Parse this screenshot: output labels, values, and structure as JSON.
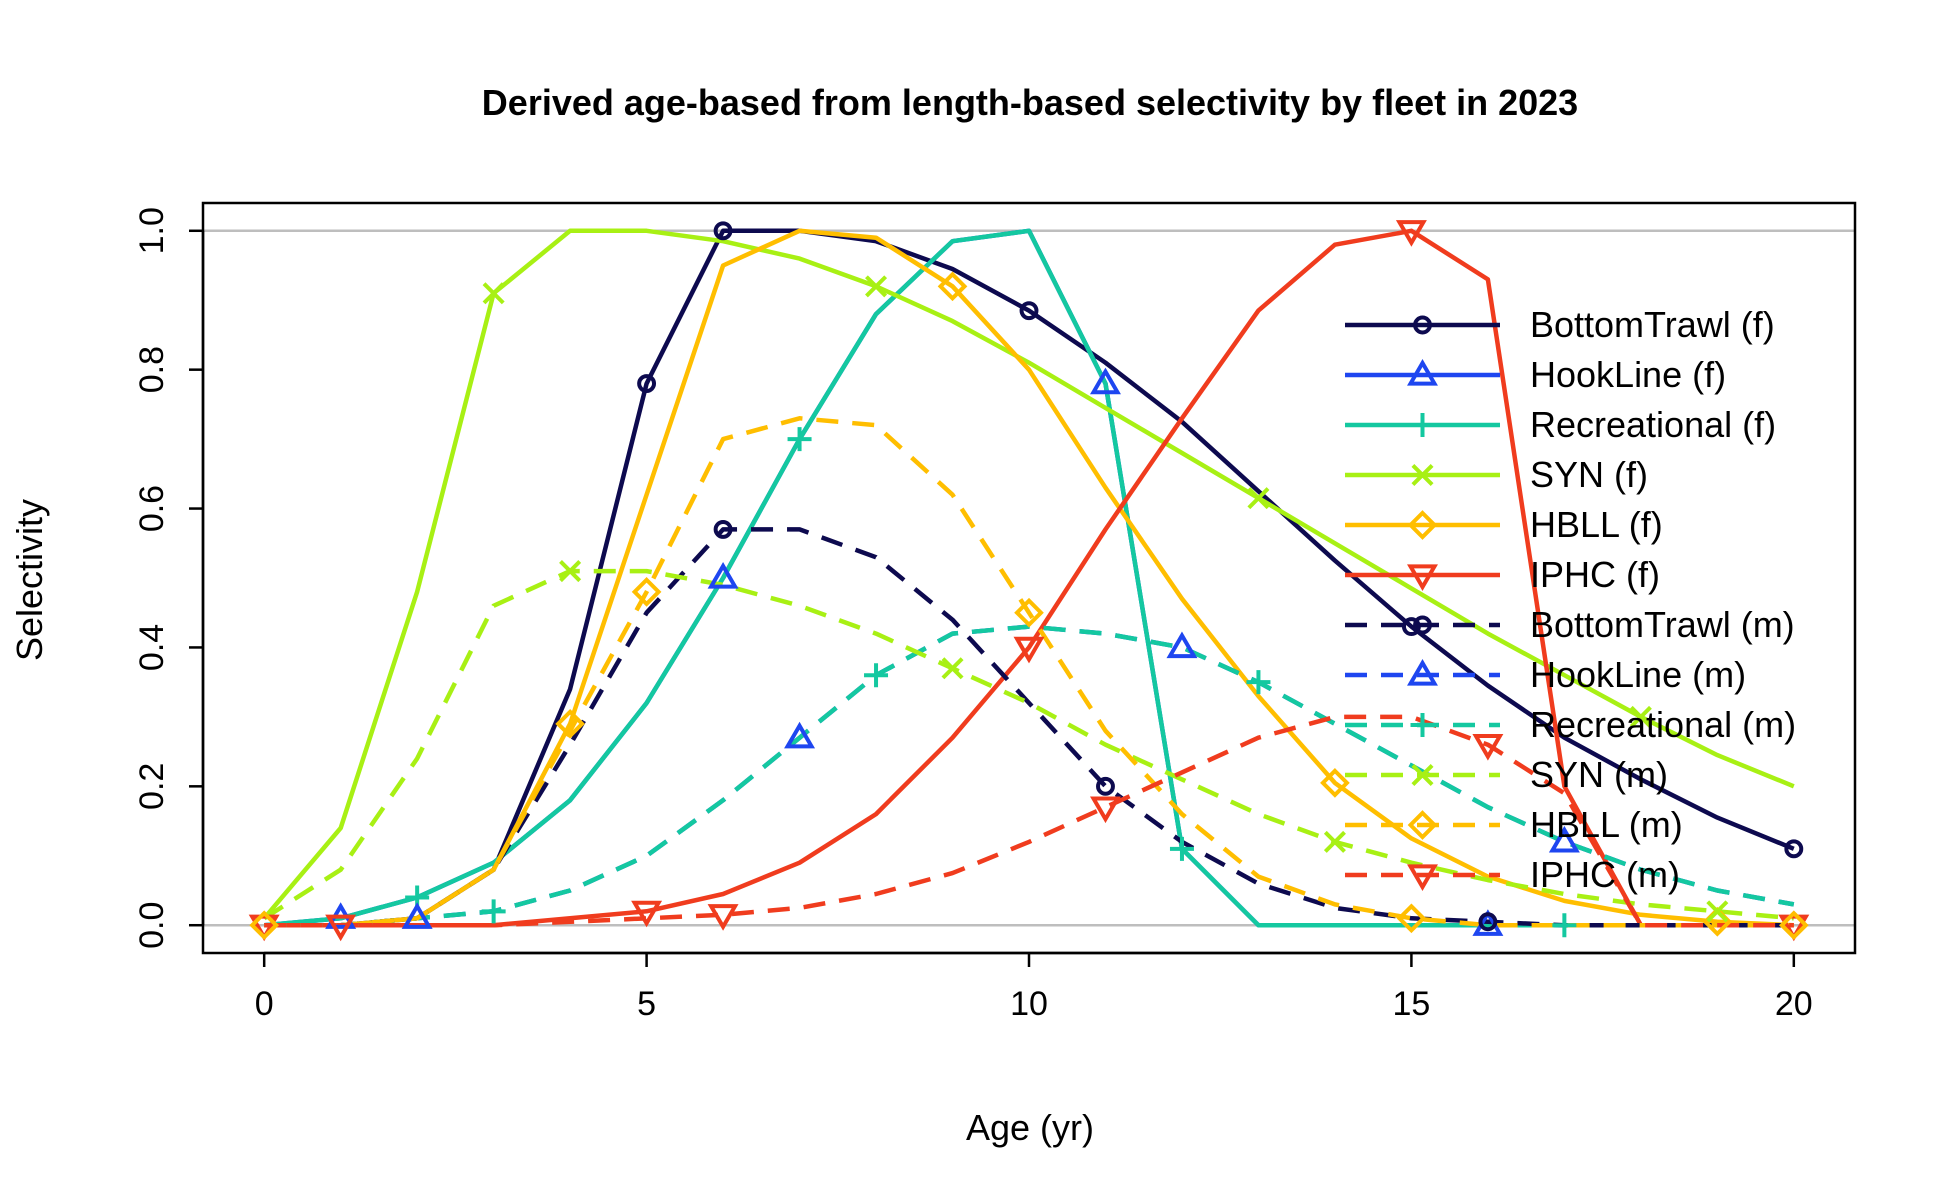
{
  "chart_data": {
    "type": "line",
    "title": "Derived age-based from length-based selectivity by fleet in 2023",
    "xlabel": "Age (yr)",
    "ylabel": "Selectivity",
    "xlim": [
      -0.8,
      20.8
    ],
    "ylim": [
      -0.04,
      1.04
    ],
    "x_ticks": [
      0,
      5,
      10,
      15,
      20
    ],
    "y_ticks": [
      0.0,
      0.2,
      0.4,
      0.6,
      0.8,
      1.0
    ],
    "x_tick_labels": [
      "0",
      "5",
      "10",
      "15",
      "20"
    ],
    "y_tick_labels": [
      "0.0",
      "0.2",
      "0.4",
      "0.6",
      "0.8",
      "1.0"
    ],
    "reference_lines": [
      0,
      1
    ],
    "reference_line_color": "#bebebe",
    "grid": false,
    "legend_position": "right",
    "x": [
      0,
      1,
      2,
      3,
      4,
      5,
      6,
      7,
      8,
      9,
      10,
      11,
      12,
      13,
      14,
      15,
      16,
      17,
      18,
      19,
      20
    ],
    "series": [
      {
        "name": "BottomTrawl (f)",
        "color": "#0d0a4f",
        "dash": false,
        "marker": "circle",
        "values": [
          0.0,
          0.0,
          0.01,
          0.08,
          0.34,
          0.78,
          1.0,
          1.0,
          0.985,
          0.945,
          0.885,
          0.81,
          0.725,
          0.625,
          0.525,
          0.43,
          0.345,
          0.27,
          0.21,
          0.155,
          0.11
        ]
      },
      {
        "name": "HookLine (f)",
        "color": "#1e46f0",
        "dash": false,
        "marker": "triangle",
        "values": [
          0.0,
          0.01,
          0.04,
          0.09,
          0.18,
          0.32,
          0.5,
          0.7,
          0.88,
          0.985,
          1.0,
          0.78,
          0.11,
          0.0,
          0.0,
          0.0,
          0.0,
          0.0,
          0.0,
          0.0,
          0.0
        ]
      },
      {
        "name": "Recreational (f)",
        "color": "#14c8a0",
        "dash": false,
        "marker": "plus",
        "values": [
          0.0,
          0.01,
          0.04,
          0.09,
          0.18,
          0.32,
          0.5,
          0.7,
          0.88,
          0.985,
          1.0,
          0.78,
          0.11,
          0.0,
          0.0,
          0.0,
          0.0,
          0.0,
          0.0,
          0.0,
          0.0
        ]
      },
      {
        "name": "SYN (f)",
        "color": "#a8f014",
        "dash": false,
        "marker": "x",
        "values": [
          0.01,
          0.14,
          0.48,
          0.91,
          1.0,
          1.0,
          0.985,
          0.96,
          0.92,
          0.87,
          0.81,
          0.745,
          0.68,
          0.615,
          0.55,
          0.485,
          0.42,
          0.36,
          0.3,
          0.245,
          0.2
        ]
      },
      {
        "name": "HBLL (f)",
        "color": "#ffbe00",
        "dash": false,
        "marker": "diamond",
        "values": [
          0.0,
          0.0,
          0.01,
          0.08,
          0.29,
          0.62,
          0.95,
          1.0,
          0.99,
          0.92,
          0.8,
          0.63,
          0.47,
          0.33,
          0.205,
          0.125,
          0.07,
          0.035,
          0.015,
          0.005,
          0.0
        ]
      },
      {
        "name": "IPHC (f)",
        "color": "#f03c1e",
        "dash": false,
        "marker": "triangle-down",
        "values": [
          0.0,
          0.0,
          0.0,
          0.0,
          0.01,
          0.02,
          0.045,
          0.09,
          0.16,
          0.27,
          0.4,
          0.57,
          0.73,
          0.885,
          0.98,
          1.0,
          0.93,
          0.2,
          0.0,
          0.0,
          0.0
        ]
      },
      {
        "name": "BottomTrawl (m)",
        "color": "#0d0a4f",
        "dash": true,
        "marker": "circle",
        "values": [
          0.0,
          0.0,
          0.01,
          0.08,
          0.26,
          0.45,
          0.57,
          0.57,
          0.53,
          0.44,
          0.32,
          0.2,
          0.12,
          0.06,
          0.025,
          0.01,
          0.005,
          0.0,
          0.0,
          0.0,
          0.0
        ]
      },
      {
        "name": "HookLine (m)",
        "color": "#1e46f0",
        "dash": true,
        "marker": "triangle",
        "values": [
          0.0,
          0.0,
          0.01,
          0.02,
          0.05,
          0.1,
          0.18,
          0.27,
          0.36,
          0.42,
          0.43,
          0.42,
          0.4,
          0.35,
          0.29,
          0.23,
          0.17,
          0.12,
          0.08,
          0.05,
          0.03
        ]
      },
      {
        "name": "Recreational (m)",
        "color": "#14c8a0",
        "dash": true,
        "marker": "plus",
        "values": [
          0.0,
          0.0,
          0.01,
          0.02,
          0.05,
          0.1,
          0.18,
          0.27,
          0.36,
          0.42,
          0.43,
          0.42,
          0.4,
          0.35,
          0.29,
          0.23,
          0.17,
          0.12,
          0.08,
          0.05,
          0.03
        ]
      },
      {
        "name": "SYN (m)",
        "color": "#a8f014",
        "dash": true,
        "marker": "x",
        "values": [
          0.01,
          0.08,
          0.24,
          0.46,
          0.51,
          0.51,
          0.49,
          0.46,
          0.42,
          0.37,
          0.32,
          0.26,
          0.21,
          0.16,
          0.12,
          0.09,
          0.065,
          0.045,
          0.03,
          0.02,
          0.01
        ]
      },
      {
        "name": "HBLL (m)",
        "color": "#ffbe00",
        "dash": true,
        "marker": "diamond",
        "values": [
          0.0,
          0.0,
          0.01,
          0.08,
          0.28,
          0.48,
          0.7,
          0.73,
          0.72,
          0.62,
          0.45,
          0.28,
          0.16,
          0.07,
          0.03,
          0.01,
          0.0,
          0.0,
          0.0,
          0.0,
          0.0
        ]
      },
      {
        "name": "IPHC (m)",
        "color": "#f03c1e",
        "dash": true,
        "marker": "triangle-down",
        "values": [
          0.0,
          0.0,
          0.0,
          0.0,
          0.005,
          0.01,
          0.015,
          0.025,
          0.045,
          0.075,
          0.12,
          0.17,
          0.22,
          0.27,
          0.3,
          0.3,
          0.26,
          0.19,
          0.0,
          0.0,
          0.0
        ]
      }
    ],
    "markers_shown_at": {
      "BottomTrawl (f)": [
        5,
        6,
        10,
        15,
        20
      ],
      "HookLine (f)": [
        1,
        6,
        11,
        16
      ],
      "Recreational (f)": [
        2,
        7,
        12,
        17
      ],
      "SYN (f)": [
        3,
        8,
        13,
        18
      ],
      "HBLL (f)": [
        4,
        9,
        14,
        19
      ],
      "IPHC (f)": [
        0,
        5,
        10,
        15,
        20
      ],
      "BottomTrawl (m)": [
        6,
        11,
        16
      ],
      "HookLine (m)": [
        2,
        7,
        12,
        17
      ],
      "Recreational (m)": [
        3,
        8,
        13
      ],
      "SYN (m)": [
        4,
        9,
        14,
        19
      ],
      "HBLL (m)": [
        0,
        5,
        10,
        15,
        20
      ],
      "IPHC (m)": [
        1,
        6,
        11,
        16
      ]
    }
  }
}
